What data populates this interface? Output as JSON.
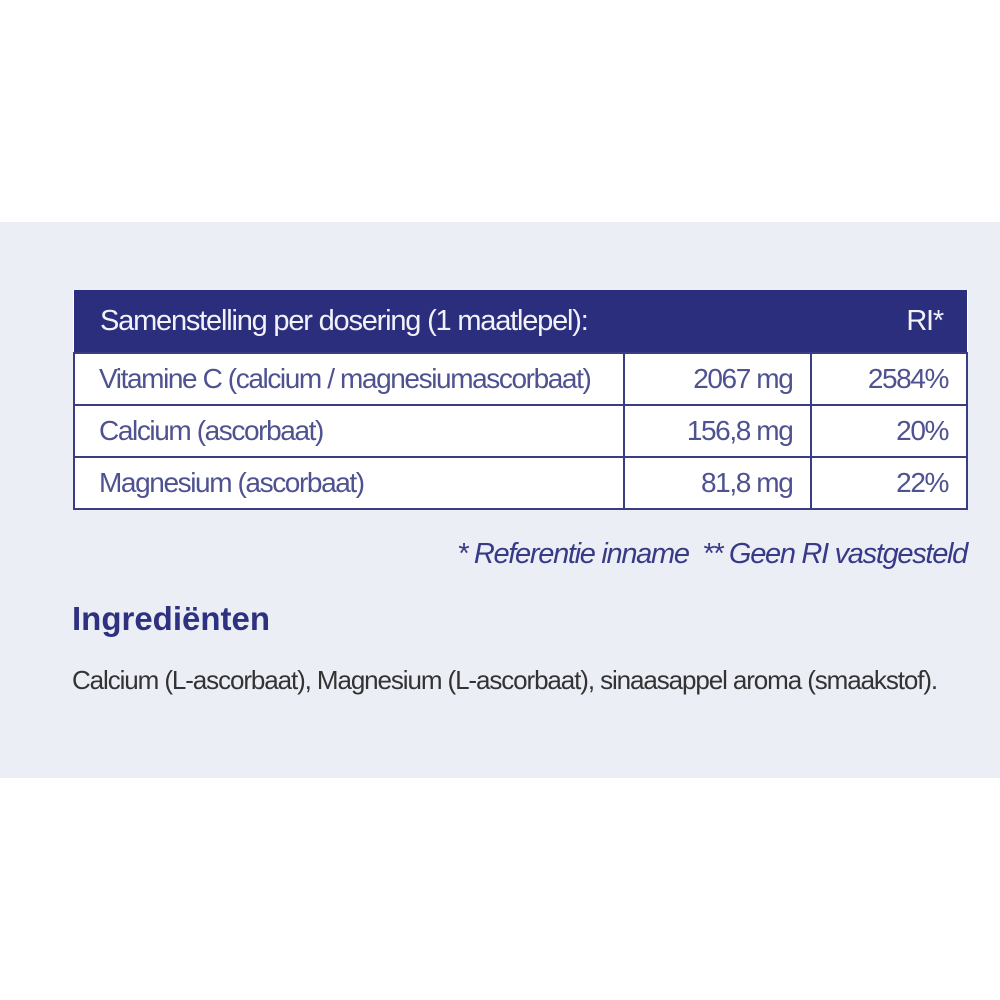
{
  "table": {
    "header": {
      "label": "Samenstelling per dosering (1 maatlepel):",
      "ri": "RI*"
    },
    "rows": [
      {
        "name": "Vitamine C (calcium / magnesiumascorbaat)",
        "amount": "2067 mg",
        "ri": "2584%"
      },
      {
        "name": "Calcium (ascorbaat)",
        "amount": "156,8 mg",
        "ri": "20%"
      },
      {
        "name": "Magnesium (ascorbaat)",
        "amount": "81,8 mg",
        "ri": "22%"
      }
    ]
  },
  "footnote": "* Referentie inname  ** Geen RI vastgesteld",
  "ingredients": {
    "title": "Ingrediënten",
    "text": "Calcium (L-ascorbaat), Magnesium (L-ascorbaat), sinaasappel aroma (smaakstof)."
  },
  "colors": {
    "header_bg": "#2b2e7c",
    "accent": "#2e3180",
    "panel_bg": "#eceef6"
  }
}
